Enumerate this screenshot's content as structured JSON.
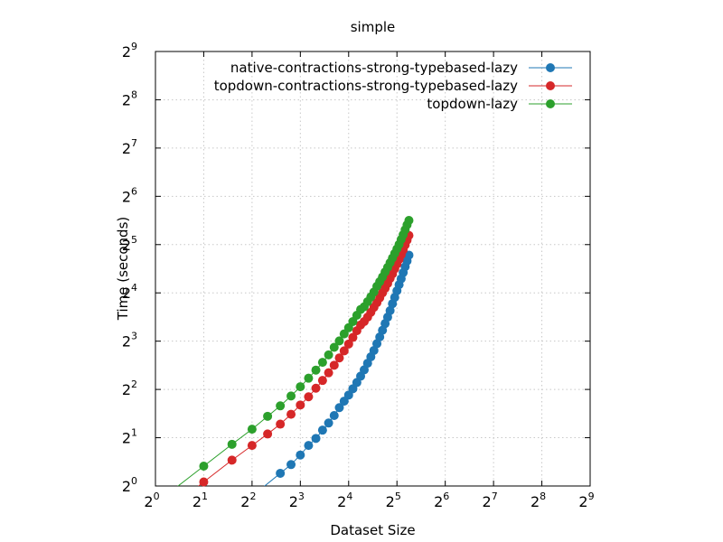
{
  "chart_data": {
    "type": "line",
    "title": "simple",
    "xlabel": "Dataset Size",
    "ylabel": "Time (seconds)",
    "x_scale": "log2",
    "y_scale": "log2",
    "xlim": [
      1,
      512
    ],
    "ylim": [
      1,
      512
    ],
    "x_ticks": [
      {
        "base": "2",
        "exp": "0"
      },
      {
        "base": "2",
        "exp": "1"
      },
      {
        "base": "2",
        "exp": "2"
      },
      {
        "base": "2",
        "exp": "3"
      },
      {
        "base": "2",
        "exp": "4"
      },
      {
        "base": "2",
        "exp": "5"
      },
      {
        "base": "2",
        "exp": "6"
      },
      {
        "base": "2",
        "exp": "7"
      },
      {
        "base": "2",
        "exp": "8"
      },
      {
        "base": "2",
        "exp": "9"
      }
    ],
    "y_ticks": [
      {
        "base": "2",
        "exp": "0"
      },
      {
        "base": "2",
        "exp": "1"
      },
      {
        "base": "2",
        "exp": "2"
      },
      {
        "base": "2",
        "exp": "3"
      },
      {
        "base": "2",
        "exp": "4"
      },
      {
        "base": "2",
        "exp": "5"
      },
      {
        "base": "2",
        "exp": "6"
      },
      {
        "base": "2",
        "exp": "7"
      },
      {
        "base": "2",
        "exp": "8"
      },
      {
        "base": "2",
        "exp": "9"
      }
    ],
    "grid": true,
    "legend_position": "top-right",
    "series": [
      {
        "name": "native-contractions-strong-typebased-lazy",
        "color": "#1f77b4",
        "x": [
          6,
          7,
          8,
          9,
          10,
          11,
          12,
          13,
          14,
          15,
          16,
          17,
          18,
          19,
          20,
          21,
          22,
          23,
          24,
          25,
          26,
          27,
          28,
          29,
          30,
          31,
          32,
          33,
          34,
          35,
          36,
          37,
          38
        ],
        "y": [
          1.2,
          1.36,
          1.56,
          1.79,
          1.98,
          2.23,
          2.47,
          2.75,
          3.08,
          3.38,
          3.69,
          4.04,
          4.42,
          4.84,
          5.3,
          5.83,
          6.39,
          7.0,
          7.72,
          8.5,
          9.35,
          10.3,
          11.3,
          12.4,
          13.7,
          15.0,
          16.5,
          18.0,
          19.6,
          21.4,
          23.3,
          25.3,
          27.5
        ]
      },
      {
        "name": "topdown-contractions-strong-typebased-lazy",
        "color": "#d62728",
        "x": [
          2,
          3,
          4,
          5,
          6,
          7,
          8,
          9,
          10,
          11,
          12,
          13,
          14,
          15,
          16,
          17,
          18,
          19,
          20,
          21,
          22,
          23,
          24,
          25,
          26,
          27,
          28,
          29,
          30,
          31,
          32,
          33,
          34,
          35,
          36,
          37,
          38
        ],
        "y": [
          1.06,
          1.45,
          1.79,
          2.11,
          2.43,
          2.8,
          3.2,
          3.6,
          4.07,
          4.55,
          5.08,
          5.66,
          6.29,
          6.96,
          7.68,
          8.44,
          9.29,
          10.1,
          10.6,
          11.3,
          12.1,
          13.0,
          13.9,
          14.9,
          16.0,
          17.1,
          18.3,
          19.7,
          21.0,
          22.6,
          24.2,
          25.9,
          27.7,
          29.7,
          31.8,
          34.1,
          36.5
        ]
      },
      {
        "name": "topdown-lazy",
        "color": "#2ca02c",
        "x": [
          2,
          3,
          4,
          5,
          6,
          7,
          8,
          9,
          10,
          11,
          12,
          13,
          14,
          15,
          16,
          17,
          18,
          19,
          20,
          21,
          22,
          23,
          24,
          25,
          26,
          27,
          28,
          29,
          30,
          31,
          32,
          33,
          34,
          35,
          36,
          37,
          38
        ],
        "y": [
          1.33,
          1.82,
          2.26,
          2.72,
          3.16,
          3.64,
          4.16,
          4.7,
          5.28,
          5.9,
          6.57,
          7.32,
          8.03,
          8.88,
          9.7,
          10.6,
          11.6,
          12.6,
          13.1,
          14.1,
          15.1,
          16.2,
          17.6,
          18.8,
          20.1,
          21.6,
          23.1,
          24.7,
          26.4,
          28.2,
          30.1,
          32.1,
          34.5,
          36.9,
          39.6,
          42.5,
          45.3
        ]
      }
    ]
  }
}
